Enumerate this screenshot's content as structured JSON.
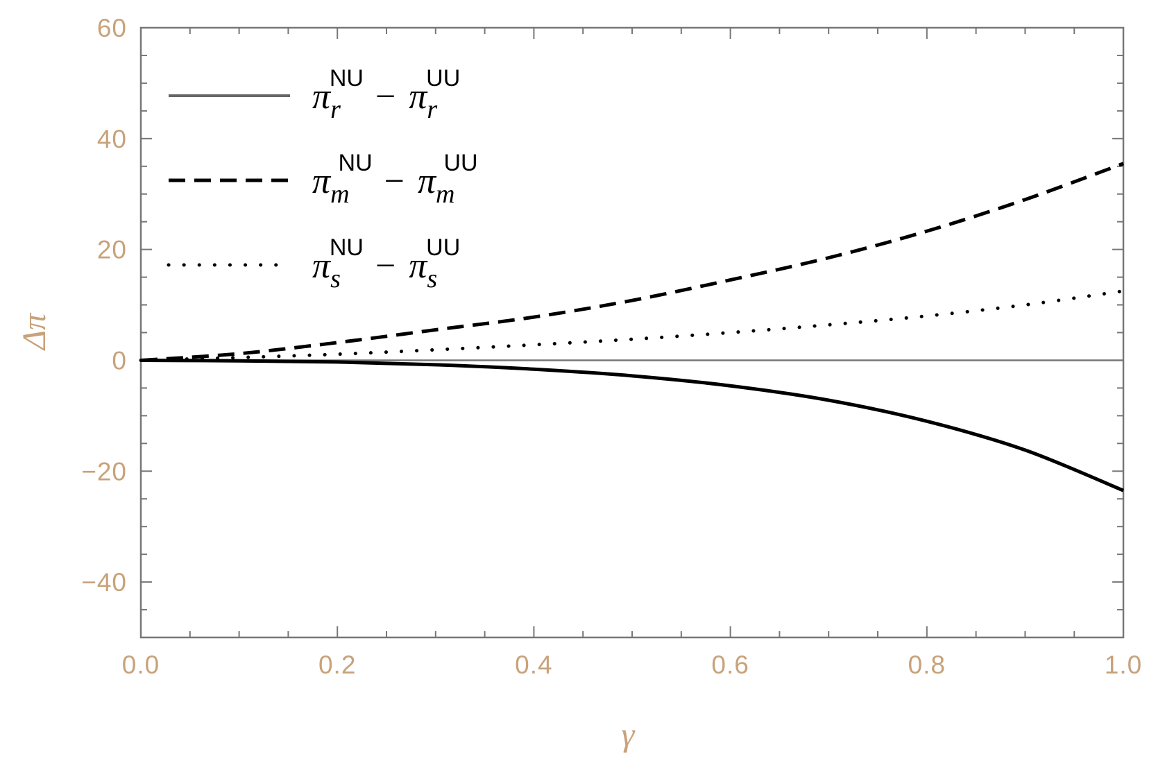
{
  "chart_data": {
    "type": "line",
    "title": "",
    "xlabel": "γ",
    "ylabel": "Δπ",
    "xlim": [
      0.0,
      1.0
    ],
    "ylim": [
      -50,
      60
    ],
    "x_ticks": [
      0.0,
      0.2,
      0.4,
      0.6,
      0.8,
      1.0
    ],
    "x_tick_labels": [
      "0.0",
      "0.2",
      "0.4",
      "0.6",
      "0.8",
      "1.0"
    ],
    "y_ticks": [
      60,
      40,
      20,
      0,
      -20,
      -40
    ],
    "y_tick_labels": [
      "60",
      "40",
      "20",
      "0",
      "−20",
      "−40"
    ],
    "grid": false,
    "zero_line": true,
    "legend_position": "top-left",
    "colors": {
      "axes": "#777777",
      "ticks": "#c8a27a",
      "series": "#000000"
    },
    "series": [
      {
        "name": "π_r^NU − π_r^UU",
        "style": "solid",
        "legend": {
          "pi": "π",
          "sub": "r",
          "sup1": "NU",
          "minus": " − ",
          "sup2": "UU"
        },
        "x": [
          0.0,
          0.1,
          0.2,
          0.3,
          0.4,
          0.5,
          0.6,
          0.7,
          0.8,
          0.9,
          1.0
        ],
        "y": [
          0.0,
          -0.1,
          -0.3,
          -0.8,
          -1.6,
          -2.8,
          -4.6,
          -7.2,
          -11.0,
          -16.2,
          -23.5
        ]
      },
      {
        "name": "π_m^NU − π_m^UU",
        "style": "dashed",
        "legend": {
          "pi": "π",
          "sub": "m",
          "sup1": "NU",
          "minus": " − ",
          "sup2": "UU"
        },
        "x": [
          0.0,
          0.1,
          0.2,
          0.3,
          0.4,
          0.5,
          0.6,
          0.7,
          0.8,
          0.9,
          1.0
        ],
        "y": [
          0.0,
          1.2,
          3.2,
          5.5,
          7.8,
          10.8,
          14.5,
          18.5,
          23.3,
          29.0,
          35.5
        ]
      },
      {
        "name": "π_s^NU − π_s^UU",
        "style": "dotted",
        "legend": {
          "pi": "π",
          "sub": "s",
          "sup1": "NU",
          "minus": " − ",
          "sup2": "UU"
        },
        "x": [
          0.0,
          0.1,
          0.2,
          0.3,
          0.4,
          0.5,
          0.6,
          0.7,
          0.8,
          0.9,
          1.0
        ],
        "y": [
          0.0,
          0.5,
          1.1,
          1.9,
          2.8,
          3.8,
          5.0,
          6.4,
          8.0,
          10.0,
          12.5
        ]
      }
    ]
  }
}
